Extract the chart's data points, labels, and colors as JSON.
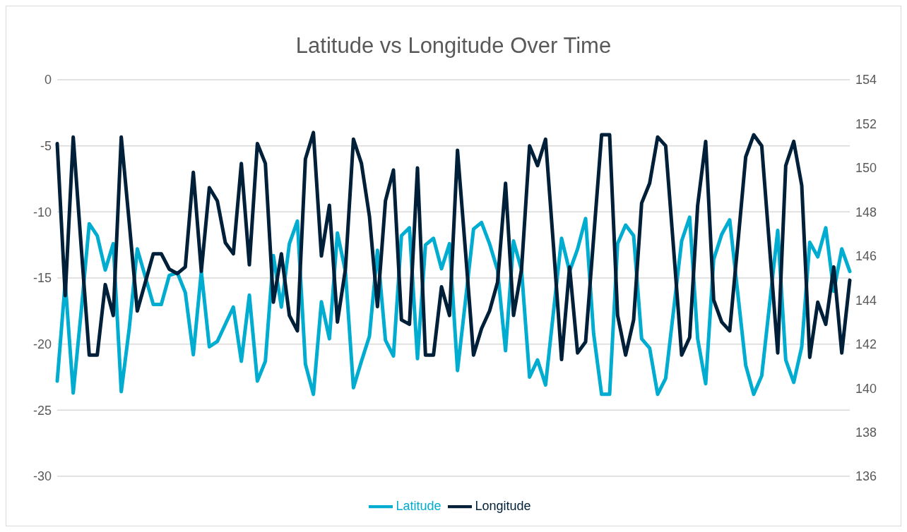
{
  "chart_data": {
    "type": "line",
    "title": "Latitude vs Longitude Over Time",
    "categories": [
      null,
      null,
      null,
      null,
      null,
      null,
      null,
      null,
      null,
      null,
      null,
      null,
      null,
      null,
      null,
      null,
      null,
      null,
      null,
      null,
      null,
      null,
      null,
      null,
      null,
      null,
      null,
      null,
      null,
      null,
      null,
      null,
      null,
      null,
      null,
      null,
      null,
      null,
      null,
      null,
      null,
      null,
      null,
      null,
      null,
      null,
      null,
      null,
      null,
      null,
      null,
      null,
      null,
      null,
      null,
      null,
      null,
      null,
      null,
      null,
      null,
      null,
      null,
      null,
      null,
      null,
      null,
      null,
      null,
      null,
      null,
      null,
      null,
      null,
      null,
      null,
      null,
      null,
      null,
      null,
      null,
      null,
      null,
      null,
      null,
      null,
      null,
      null,
      null,
      null,
      null,
      null,
      null,
      null,
      null,
      null,
      null,
      null,
      null,
      null
    ],
    "series": [
      {
        "name": "Latitude",
        "color": "#00acd0",
        "values": [
          -22.8,
          -15.3,
          -23.7,
          -17.5,
          -10.9,
          -11.8,
          -14.4,
          -12.4,
          -23.6,
          -18.8,
          -12.8,
          -14.9,
          -17,
          -17,
          -14.8,
          -14.6,
          -16.1,
          -20.8,
          -14.5,
          -20.2,
          -19.8,
          -18.5,
          -17.2,
          -21.3,
          -16.3,
          -22.8,
          -21.3,
          -13.3,
          -17.2,
          -12.4,
          -10.7,
          -21.5,
          -23.8,
          -16.8,
          -19.6,
          -11.6,
          -14.5,
          -23.3,
          -21.3,
          -19.4,
          -12.9,
          -19.7,
          -20.9,
          -11.8,
          -11.2,
          -21.1,
          -12.5,
          -12,
          -14.3,
          -12.4,
          -22,
          -16.7,
          -11.3,
          -10.8,
          -12.4,
          -14.4,
          -20.5,
          -12.2,
          -14.4,
          -22.5,
          -21.2,
          -23.1,
          -17.5,
          -12,
          -14.5,
          -12.8,
          -10.5,
          -19.2,
          -23.8,
          -23.8,
          -12.4,
          -11,
          -11.8,
          -19.6,
          -20.3,
          -23.8,
          -22.6,
          -17.4,
          -12.2,
          -10.4,
          -19.6,
          -23,
          -13.6,
          -11.7,
          -10.6,
          -16.1,
          -21.6,
          -23.8,
          -22.4,
          -16.9,
          -11.4,
          -21.2,
          -22.9,
          -20.2,
          -12.3,
          -13.4,
          -11.2,
          -16,
          -12.8,
          -14.5
        ]
      },
      {
        "name": "Longitude",
        "color": "#001f38",
        "axis": "y2",
        "values": [
          151.1,
          144.2,
          151.4,
          146.4,
          141.5,
          141.5,
          144.7,
          143.3,
          151.4,
          147.5,
          143.5,
          144.8,
          146.1,
          146.1,
          145.4,
          145.2,
          145.5,
          149.8,
          145.3,
          149.1,
          148.5,
          146.6,
          146.1,
          150.2,
          145.6,
          151.1,
          150.2,
          143.9,
          146.1,
          143.3,
          142.6,
          150.4,
          151.6,
          146,
          148.3,
          143,
          145.4,
          151.3,
          150.2,
          147.8,
          143.7,
          148.5,
          149.9,
          143.1,
          142.9,
          150,
          141.5,
          141.5,
          144.6,
          143.3,
          150.8,
          146.2,
          141.5,
          142.7,
          143.5,
          144.8,
          149.3,
          143.3,
          145.4,
          151,
          150.1,
          151.3,
          146.4,
          141.3,
          145.5,
          141.6,
          142.1,
          146.8,
          151.5,
          151.5,
          143.3,
          141.5,
          143.1,
          148.4,
          149.3,
          151.4,
          151,
          146.3,
          141.5,
          142.3,
          148.3,
          151.2,
          144,
          143,
          142.6,
          146.5,
          150.5,
          151.5,
          151,
          146.3,
          141.6,
          150.1,
          151.2,
          149.2,
          141.4,
          143.9,
          142.9,
          145.5,
          141.6,
          144.9
        ]
      }
    ],
    "ylim": [
      -30,
      0
    ],
    "yticks": [
      -30,
      -25,
      -20,
      -15,
      -10,
      -5,
      0
    ],
    "y2lim": [
      136,
      154
    ],
    "y2ticks": [
      136,
      138,
      140,
      142,
      144,
      146,
      148,
      150,
      152,
      154
    ],
    "grid": "y",
    "legend": "bottom",
    "marker": "none",
    "line_style": "solid"
  }
}
